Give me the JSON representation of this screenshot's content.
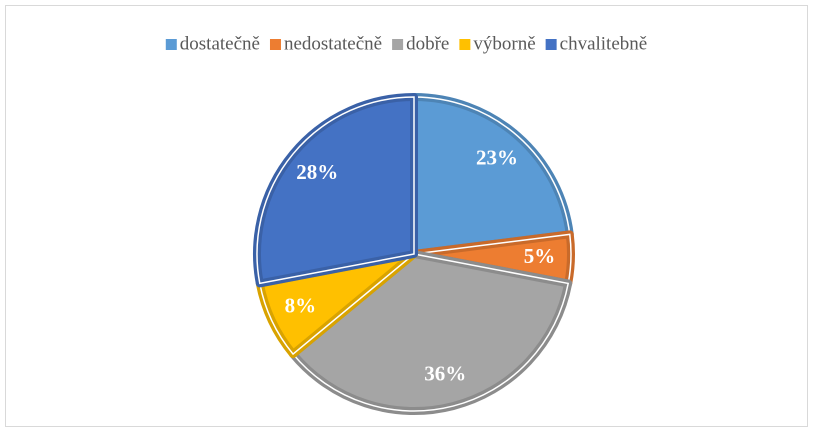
{
  "chart_data": {
    "type": "pie",
    "categories": [
      "dostatečně",
      "nedostatečně",
      "dobře",
      "výborně",
      "chvalitebně"
    ],
    "values": [
      23,
      5,
      36,
      8,
      28
    ],
    "value_labels": [
      "23%",
      "5%",
      "36%",
      "8%",
      "28%"
    ],
    "colors": [
      "#5b9bd5",
      "#ed7d31",
      "#a5a5a5",
      "#ffc000",
      "#4472c4"
    ],
    "legend": "top"
  }
}
